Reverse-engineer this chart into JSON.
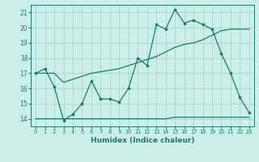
{
  "xlabel": "Humidex (Indice chaleur)",
  "bg_color": "#cceee8",
  "grid_color": "#aad4ce",
  "line_color": "#1a7a6e",
  "xlim": [
    -0.5,
    23.5
  ],
  "ylim": [
    13.5,
    21.5
  ],
  "yticks": [
    14,
    15,
    16,
    17,
    18,
    19,
    20,
    21
  ],
  "xticks": [
    0,
    1,
    2,
    3,
    4,
    5,
    6,
    7,
    8,
    9,
    10,
    11,
    12,
    13,
    14,
    15,
    16,
    17,
    18,
    19,
    20,
    21,
    22,
    23
  ],
  "line1_x": [
    0,
    1,
    2,
    3,
    4,
    5,
    6,
    7,
    8,
    9,
    10,
    11,
    12,
    13,
    14,
    15,
    16,
    17,
    18,
    19,
    20,
    21,
    22,
    23
  ],
  "line1_y": [
    17.0,
    17.3,
    16.1,
    13.9,
    14.3,
    15.0,
    16.5,
    15.3,
    15.3,
    15.1,
    16.0,
    18.0,
    17.5,
    20.2,
    19.9,
    21.2,
    20.3,
    20.5,
    20.2,
    19.9,
    18.3,
    17.0,
    15.4,
    14.4
  ],
  "line2_x": [
    0,
    1,
    2,
    3,
    4,
    5,
    6,
    7,
    8,
    9,
    10,
    11,
    12,
    13,
    14,
    15,
    16,
    17,
    18,
    19,
    20,
    21,
    22,
    23
  ],
  "line2_y": [
    17.0,
    17.0,
    17.0,
    16.4,
    16.6,
    16.8,
    17.0,
    17.1,
    17.2,
    17.3,
    17.5,
    17.7,
    17.9,
    18.1,
    18.4,
    18.7,
    18.9,
    19.0,
    19.2,
    19.5,
    19.8,
    19.9,
    19.9,
    19.9
  ],
  "line3_x": [
    0,
    1,
    2,
    3,
    4,
    5,
    6,
    7,
    8,
    9,
    10,
    11,
    12,
    13,
    14,
    15,
    16,
    17,
    18,
    19,
    20,
    21,
    22,
    23
  ],
  "line3_y": [
    14.0,
    14.0,
    14.0,
    14.0,
    14.0,
    14.0,
    14.0,
    14.0,
    14.0,
    14.0,
    14.0,
    14.0,
    14.0,
    14.0,
    14.0,
    14.1,
    14.1,
    14.1,
    14.1,
    14.1,
    14.1,
    14.1,
    14.1,
    14.1
  ]
}
